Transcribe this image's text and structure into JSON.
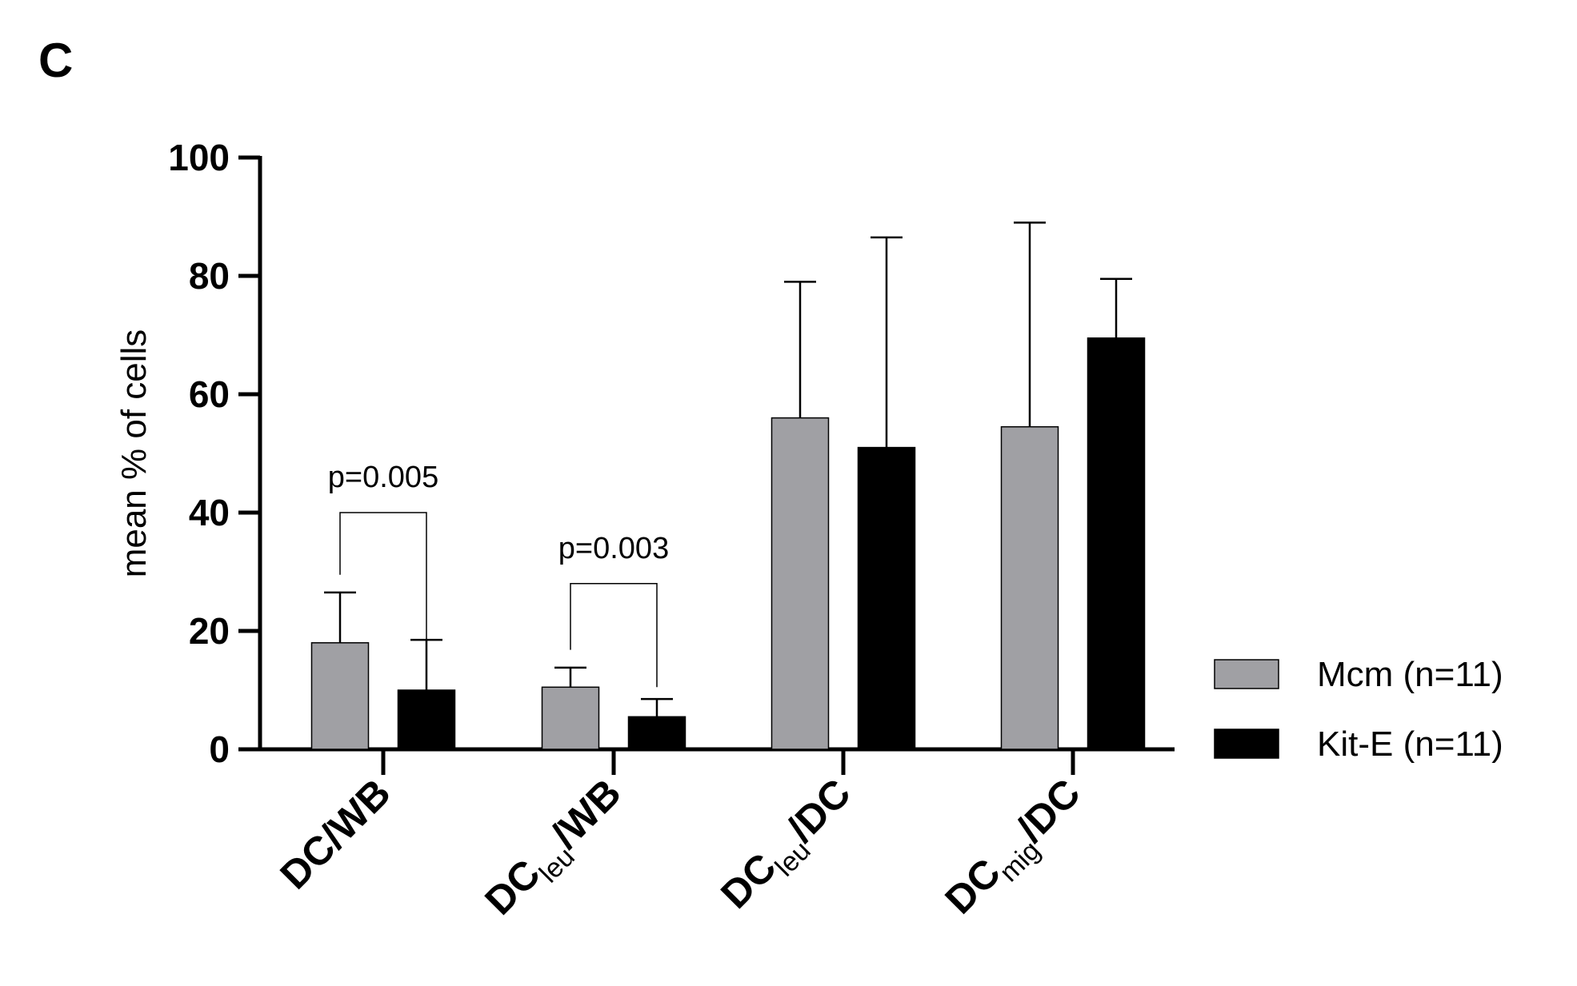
{
  "panel_label": "C",
  "chart_data": {
    "type": "bar",
    "title": "",
    "xlabel": "",
    "ylabel": "mean % of cells",
    "ylim": [
      0,
      100
    ],
    "yticks": [
      0,
      20,
      40,
      60,
      80,
      100
    ],
    "categories": [
      {
        "label": "DC/WB",
        "main": "DC",
        "sub": "",
        "rest": "/WB"
      },
      {
        "label": "DCleu/WB",
        "main": "DC",
        "sub": "leu",
        "rest": "/WB"
      },
      {
        "label": "DCleu/DC",
        "main": "DC",
        "sub": "leu",
        "rest": "/DC"
      },
      {
        "label": "DCmig/DC",
        "main": "DC",
        "sub": "mig",
        "rest": "/DC"
      }
    ],
    "series": [
      {
        "name": "Mcm (n=11)",
        "color": "#a0a0a4",
        "values": [
          18,
          10.5,
          56,
          54.5
        ],
        "errors": [
          8.5,
          3.3,
          23,
          34.5
        ]
      },
      {
        "name": "Kit-E (n=11)",
        "color": "#000000",
        "values": [
          10,
          5.5,
          51,
          69.5
        ],
        "errors": [
          8.5,
          3,
          35.5,
          10
        ]
      }
    ],
    "annotations": [
      {
        "text": "p=0.005",
        "group": 0,
        "y": 38,
        "top": 40
      },
      {
        "text": "p=0.003",
        "group": 1,
        "y": 28,
        "top": 28
      }
    ],
    "legend": "right-bottom",
    "grid": false
  }
}
